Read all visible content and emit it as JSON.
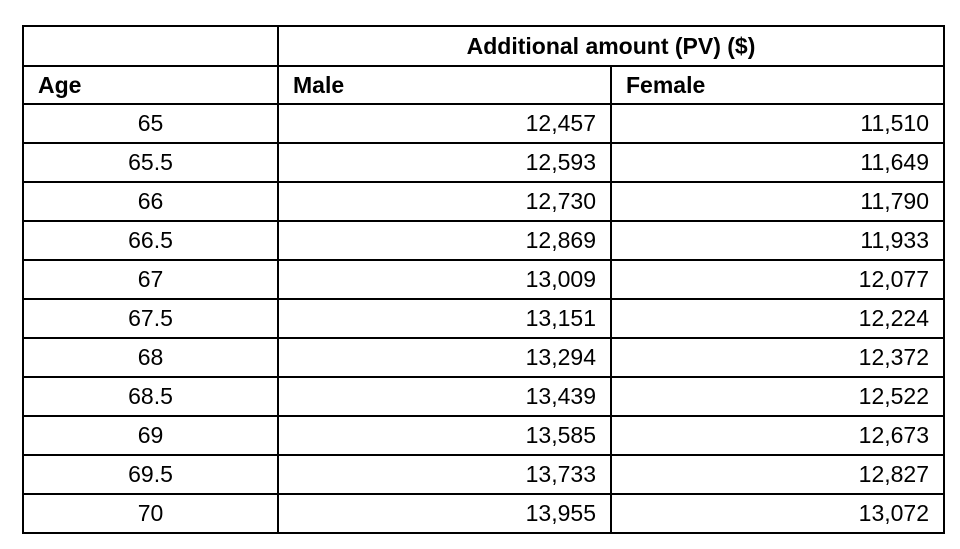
{
  "table": {
    "group_header": "Additional amount (PV) ($)",
    "columns": [
      "Age",
      "Male",
      "Female"
    ],
    "rows": [
      {
        "age": "65",
        "male": "12,457",
        "female": "11,510"
      },
      {
        "age": "65.5",
        "male": "12,593",
        "female": "11,649"
      },
      {
        "age": "66",
        "male": "12,730",
        "female": "11,790"
      },
      {
        "age": "66.5",
        "male": "12,869",
        "female": "11,933"
      },
      {
        "age": "67",
        "male": "13,009",
        "female": "12,077"
      },
      {
        "age": "67.5",
        "male": "13,151",
        "female": "12,224"
      },
      {
        "age": "68",
        "male": "13,294",
        "female": "12,372"
      },
      {
        "age": "68.5",
        "male": "13,439",
        "female": "12,522"
      },
      {
        "age": "69",
        "male": "13,585",
        "female": "12,673"
      },
      {
        "age": "69.5",
        "male": "13,733",
        "female": "12,827"
      },
      {
        "age": "70",
        "male": "13,955",
        "female": "13,072"
      }
    ]
  },
  "chart_data": {
    "type": "table",
    "title": "Additional amount (PV) ($)",
    "columns": [
      "Age",
      "Male",
      "Female"
    ],
    "rows": [
      [
        65,
        12457,
        11510
      ],
      [
        65.5,
        12593,
        11649
      ],
      [
        66,
        12730,
        11790
      ],
      [
        66.5,
        12869,
        11933
      ],
      [
        67,
        13009,
        12077
      ],
      [
        67.5,
        13151,
        12224
      ],
      [
        68,
        13294,
        12372
      ],
      [
        68.5,
        13439,
        12522
      ],
      [
        69,
        13585,
        12673
      ],
      [
        69.5,
        13733,
        12827
      ],
      [
        70,
        13955,
        13072
      ]
    ],
    "colors": {
      "border": "#000000",
      "text": "#000000",
      "background": "#ffffff"
    }
  }
}
